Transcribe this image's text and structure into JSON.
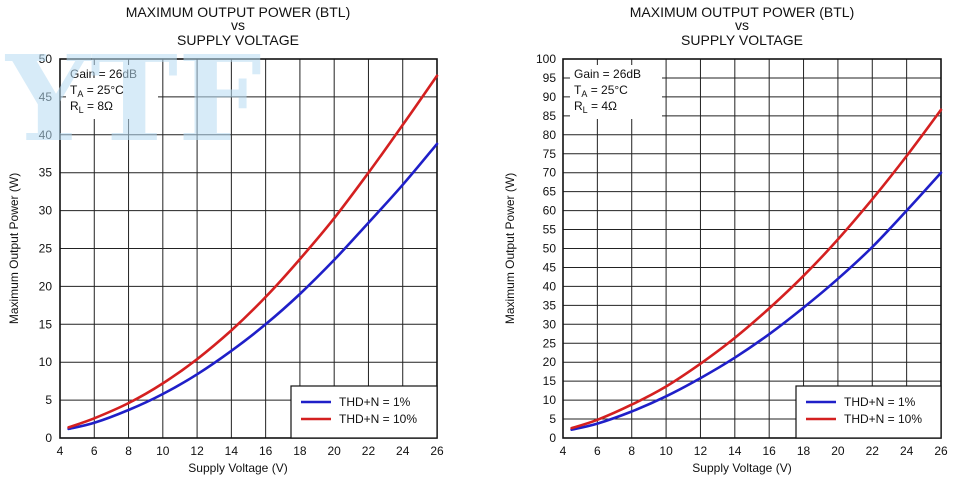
{
  "watermark": "YTF",
  "chart_data": [
    {
      "type": "line",
      "title": "MAXIMUM OUTPUT POWER (BTL)",
      "title_line2": "vs",
      "title_line3": "SUPPLY VOLTAGE",
      "xlabel": "Supply Voltage (V)",
      "ylabel": "Maximum Output Power (W)",
      "xlim": [
        4,
        26
      ],
      "ylim": [
        0,
        50
      ],
      "xticks": [
        4,
        6,
        8,
        10,
        12,
        14,
        16,
        18,
        20,
        22,
        24,
        26
      ],
      "yticks": [
        0,
        5,
        10,
        15,
        20,
        25,
        30,
        35,
        40,
        45,
        50
      ],
      "grid": true,
      "legend_position": "bottom-right",
      "annotations": [
        "Gain = 26dB",
        "TA = 25°C",
        "RL = 8Ω"
      ],
      "series": [
        {
          "name": "THD+N = 1%",
          "color": "#1f1fc8",
          "x": [
            4.5,
            6,
            8,
            10,
            12,
            14,
            16,
            18,
            20,
            22,
            24,
            26
          ],
          "values": [
            1.2,
            2.0,
            3.7,
            5.8,
            8.4,
            11.5,
            15.0,
            19.0,
            23.5,
            28.4,
            33.4,
            38.8
          ]
        },
        {
          "name": "THD+N = 10%",
          "color": "#d42020",
          "x": [
            4.5,
            6,
            8,
            10,
            12,
            14,
            16,
            18,
            20,
            22,
            24,
            26
          ],
          "values": [
            1.4,
            2.6,
            4.6,
            7.2,
            10.4,
            14.2,
            18.6,
            23.6,
            29.0,
            35.0,
            41.3,
            47.8
          ]
        }
      ]
    },
    {
      "type": "line",
      "title": "MAXIMUM OUTPUT POWER (BTL)",
      "title_line2": "vs",
      "title_line3": "SUPPLY VOLTAGE",
      "xlabel": "Supply Voltage (V)",
      "ylabel": "Maximum Output Power (W)",
      "xlim": [
        4,
        26
      ],
      "ylim": [
        0,
        100
      ],
      "xticks": [
        4,
        6,
        8,
        10,
        12,
        14,
        16,
        18,
        20,
        22,
        24,
        26
      ],
      "yticks": [
        0,
        5,
        10,
        15,
        20,
        25,
        30,
        35,
        40,
        45,
        50,
        55,
        60,
        65,
        70,
        75,
        80,
        85,
        90,
        95,
        100
      ],
      "grid": true,
      "legend_position": "bottom-right",
      "annotations": [
        "Gain = 26dB",
        "TA = 25°C",
        "RL = 4Ω"
      ],
      "series": [
        {
          "name": "THD+N = 1%",
          "color": "#1f1fc8",
          "x": [
            4.5,
            6,
            8,
            10,
            12,
            14,
            16,
            18,
            20,
            22,
            24,
            26
          ],
          "values": [
            2.2,
            3.8,
            7.0,
            11.0,
            15.8,
            21.2,
            27.4,
            34.4,
            42.0,
            50.4,
            60.0,
            70.0
          ]
        },
        {
          "name": "THD+N = 10%",
          "color": "#d42020",
          "x": [
            4.5,
            6,
            8,
            10,
            12,
            14,
            16,
            18,
            20,
            22,
            24,
            26
          ],
          "values": [
            2.6,
            4.8,
            8.8,
            13.6,
            19.6,
            26.4,
            34.2,
            42.8,
            52.4,
            63.0,
            74.4,
            86.6
          ]
        }
      ]
    }
  ]
}
